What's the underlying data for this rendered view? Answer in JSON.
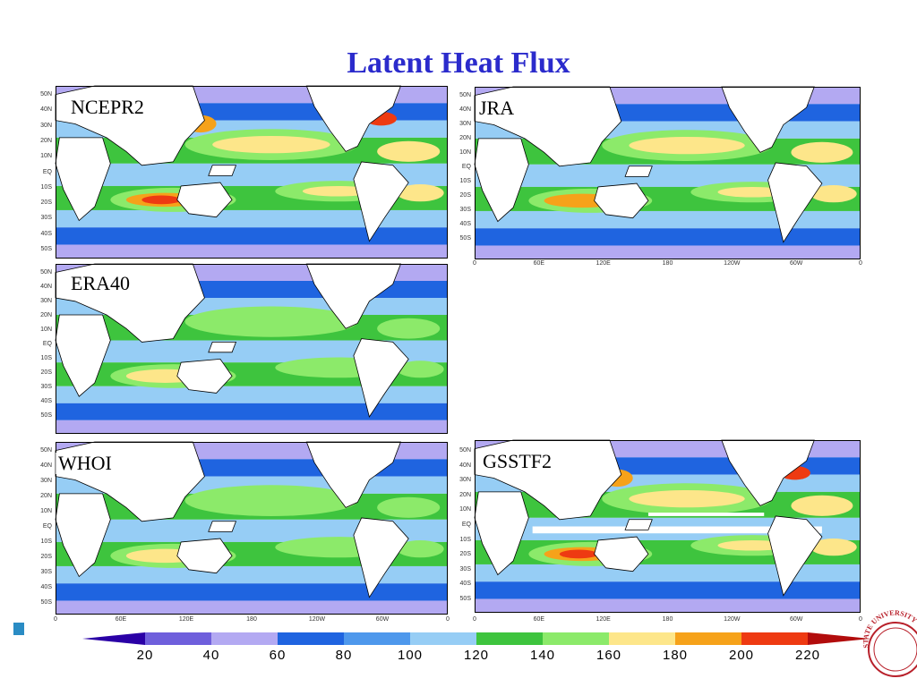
{
  "title": "Latent Heat Flux",
  "panels": [
    {
      "label": "NCEPR2",
      "lat_ticks": [
        "50N",
        "40N",
        "30N",
        "20N",
        "10N",
        "EQ",
        "10S",
        "20S",
        "30S",
        "40S",
        "50S"
      ],
      "lon_ticks": []
    },
    {
      "label": "JRA",
      "lat_ticks": [
        "50N",
        "40N",
        "30N",
        "20N",
        "10N",
        "EQ",
        "10S",
        "20S",
        "30S",
        "40S",
        "50S"
      ],
      "lon_ticks": [
        "0",
        "60E",
        "120E",
        "180",
        "120W",
        "60W",
        "0"
      ]
    },
    {
      "label": "ERA40",
      "lat_ticks": [
        "50N",
        "40N",
        "30N",
        "20N",
        "10N",
        "EQ",
        "10S",
        "20S",
        "30S",
        "40S",
        "50S"
      ],
      "lon_ticks": []
    },
    {
      "label": "WHOI",
      "lat_ticks": [
        "50N",
        "40N",
        "30N",
        "20N",
        "10N",
        "EQ",
        "10S",
        "20S",
        "30S",
        "40S",
        "50S"
      ],
      "lon_ticks": [
        "0",
        "60E",
        "120E",
        "180",
        "120W",
        "60W",
        "0"
      ]
    },
    {
      "label": "GSSTF2",
      "lat_ticks": [
        "50N",
        "40N",
        "30N",
        "20N",
        "10N",
        "EQ",
        "10S",
        "20S",
        "30S",
        "40S",
        "50S"
      ],
      "lon_ticks": [
        "0",
        "60E",
        "120E",
        "180",
        "120W",
        "60W",
        "0"
      ]
    }
  ],
  "colorbar": {
    "ticks": [
      "20",
      "40",
      "60",
      "80",
      "100",
      "120",
      "140",
      "160",
      "180",
      "200",
      "220"
    ],
    "colors": [
      "#2a00a6",
      "#6f5fdc",
      "#b3a9f2",
      "#1f64e0",
      "#4e98ec",
      "#96cdf5",
      "#3ec43e",
      "#8cea6a",
      "#fde68a",
      "#f6a21a",
      "#ee3a12",
      "#b20c0c"
    ]
  },
  "seal_text": "STATE UNIVERSITY"
}
